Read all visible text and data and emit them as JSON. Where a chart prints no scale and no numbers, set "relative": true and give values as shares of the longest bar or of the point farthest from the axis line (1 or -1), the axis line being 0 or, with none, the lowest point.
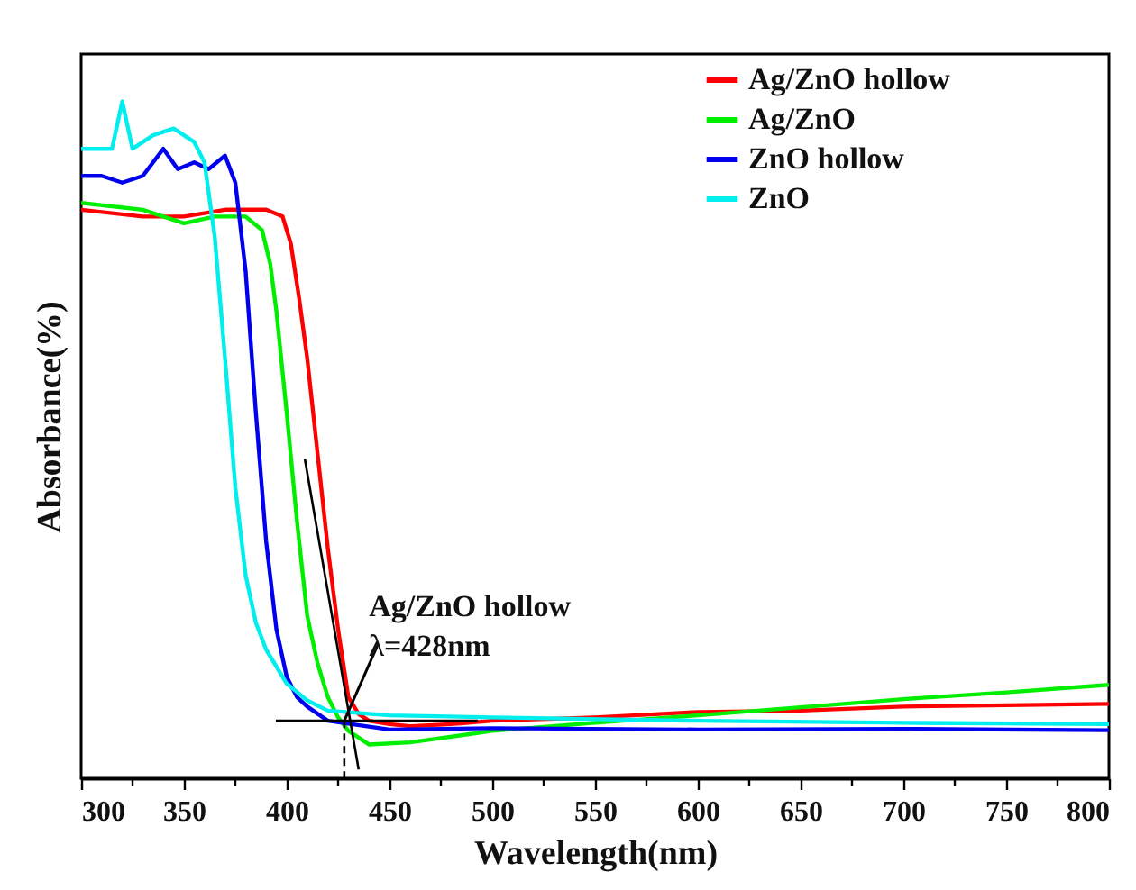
{
  "chart_data": {
    "type": "line",
    "relative": true,
    "xlabel": "Wavelength(nm)",
    "ylabel": "Absorbance(%)",
    "xlim": [
      300,
      800
    ],
    "xticks": [
      300,
      {
        "value": 325,
        "label": null
      },
      350,
      {
        "value": 375,
        "label": null
      },
      400,
      {
        "value": 425,
        "label": null
      },
      450,
      {
        "value": 475,
        "label": null
      },
      500,
      {
        "value": 525,
        "label": null
      },
      550,
      {
        "value": 575,
        "label": null
      },
      600,
      {
        "value": 625,
        "label": null
      },
      650,
      {
        "value": 675,
        "label": null
      },
      700,
      {
        "value": 725,
        "label": null
      },
      750,
      {
        "value": 775,
        "label": null
      },
      800
    ],
    "legend": "top right",
    "grid": false,
    "marker": "none",
    "line_style": "solid",
    "series": [
      {
        "name": "Ag/ZnO hollow",
        "color": "#ff0000",
        "x": [
          300,
          330,
          350,
          370,
          390,
          398,
          402,
          406,
          410,
          415,
          420,
          425,
          430,
          435,
          440,
          450,
          460,
          480,
          500,
          550,
          600,
          650,
          700,
          750,
          800
        ],
        "values": [
          0.84,
          0.83,
          0.83,
          0.84,
          0.84,
          0.83,
          0.79,
          0.71,
          0.62,
          0.48,
          0.34,
          0.22,
          0.12,
          0.095,
          0.085,
          0.08,
          0.077,
          0.08,
          0.085,
          0.09,
          0.098,
          0.1,
          0.106,
          0.108,
          0.11
        ]
      },
      {
        "name": "Ag/ZnO",
        "color": "#00ee00",
        "x": [
          300,
          330,
          350,
          365,
          380,
          388,
          392,
          395,
          400,
          405,
          410,
          415,
          420,
          425,
          430,
          440,
          460,
          500,
          550,
          600,
          650,
          700,
          750,
          800
        ],
        "values": [
          0.85,
          0.84,
          0.82,
          0.83,
          0.83,
          0.81,
          0.76,
          0.69,
          0.54,
          0.38,
          0.24,
          0.17,
          0.12,
          0.09,
          0.07,
          0.05,
          0.053,
          0.07,
          0.082,
          0.093,
          0.105,
          0.117,
          0.127,
          0.138
        ]
      },
      {
        "name": "ZnO hollow",
        "color": "#0000ee",
        "x": [
          300,
          310,
          320,
          330,
          340,
          347,
          355,
          362,
          370,
          375,
          380,
          385,
          390,
          395,
          400,
          405,
          410,
          420,
          450,
          500,
          600,
          700,
          800
        ],
        "values": [
          0.89,
          0.89,
          0.88,
          0.89,
          0.93,
          0.9,
          0.91,
          0.9,
          0.92,
          0.88,
          0.75,
          0.54,
          0.35,
          0.22,
          0.15,
          0.12,
          0.106,
          0.085,
          0.072,
          0.074,
          0.072,
          0.073,
          0.071
        ]
      },
      {
        "name": "ZnO",
        "color": "#00eeee",
        "x": [
          300,
          310,
          315,
          320,
          325,
          335,
          345,
          355,
          360,
          365,
          370,
          375,
          380,
          385,
          390,
          400,
          410,
          420,
          450,
          500,
          600,
          700,
          800
        ],
        "values": [
          0.93,
          0.93,
          0.93,
          1.0,
          0.93,
          0.95,
          0.96,
          0.94,
          0.91,
          0.8,
          0.62,
          0.43,
          0.3,
          0.23,
          0.19,
          0.14,
          0.115,
          0.1,
          0.093,
          0.09,
          0.085,
          0.082,
          0.08
        ]
      },
      {
        "color": "#000000",
        "x": [
          408.8,
          435
        ],
        "values": [
          0.472,
          0.013
        ]
      },
      {
        "color": "#000000",
        "x": [
          394.7,
          493
        ],
        "values": [
          0.085,
          0.085
        ]
      },
      {
        "color": "#000000",
        "line_style": "dashed",
        "x": [
          428,
          428
        ],
        "values": [
          0.085,
          0
        ]
      }
    ],
    "annotations": [
      {
        "text": "Ag/ZnO hollow",
        "x": 428,
        "y": 0.085
      },
      "λ=428nm"
    ]
  }
}
